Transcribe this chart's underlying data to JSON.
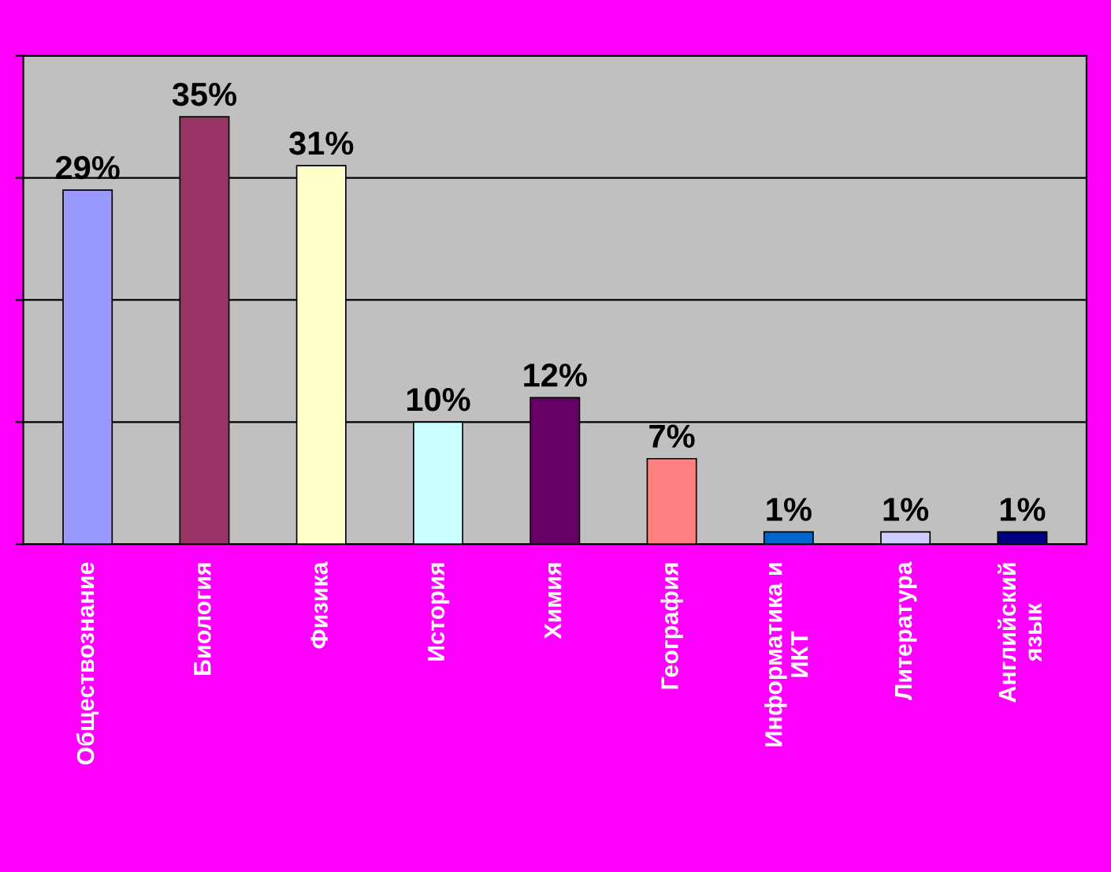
{
  "chart_data": {
    "type": "bar",
    "categories": [
      "Обществознание",
      "Биология",
      "Физика",
      "История",
      "Химия",
      "География",
      "Информатика и ИКТ",
      "Литература",
      "Английский язык"
    ],
    "values": [
      29,
      35,
      31,
      10,
      12,
      7,
      1,
      1,
      1
    ],
    "colors": [
      "#9999ff",
      "#993366",
      "#ffffcc",
      "#ccffff",
      "#660066",
      "#ff8080",
      "#0066cc",
      "#ccccff",
      "#000080"
    ],
    "value_labels": [
      "29%",
      "35%",
      "31%",
      "10%",
      "12%",
      "7%",
      "1%",
      "1%",
      "1%"
    ],
    "ylim": [
      0,
      40
    ],
    "yticks": [
      {
        "value": 0,
        "label": null
      },
      {
        "value": 10,
        "label": null
      },
      {
        "value": 20,
        "label": null
      },
      {
        "value": 30,
        "label": null
      },
      {
        "value": 40,
        "label": null
      }
    ],
    "grid": "y"
  }
}
